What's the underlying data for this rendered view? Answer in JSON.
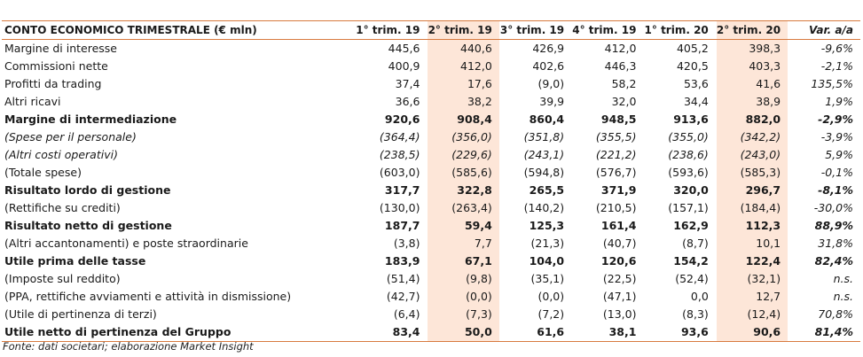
{
  "table": {
    "headers": [
      "CONTO ECONOMICO TRIMESTRALE (€ mln)",
      "1° trim. 19",
      "2° trim. 19",
      "3° trim. 19",
      "4° trim. 19",
      "1° trim. 20",
      "2° trim. 20",
      "Var. a/a"
    ],
    "shaded_columns": [
      2,
      6
    ],
    "rows": [
      {
        "label": "Margine di interesse",
        "style": "normal",
        "values": [
          "445,6",
          "440,6",
          "426,9",
          "412,0",
          "405,2",
          "398,3",
          "-9,6%"
        ]
      },
      {
        "label": "Commissioni nette",
        "style": "normal",
        "values": [
          "400,9",
          "412,0",
          "402,6",
          "446,3",
          "420,5",
          "403,3",
          "-2,1%"
        ]
      },
      {
        "label": "Profitti da trading",
        "style": "normal",
        "values": [
          "37,4",
          "17,6",
          "(9,0)",
          "58,2",
          "53,6",
          "41,6",
          "135,5%"
        ]
      },
      {
        "label": "Altri ricavi",
        "style": "normal",
        "values": [
          "36,6",
          "38,2",
          "39,9",
          "32,0",
          "34,4",
          "38,9",
          "1,9%"
        ]
      },
      {
        "label": "Margine di intermediazione",
        "style": "bold",
        "values": [
          "920,6",
          "908,4",
          "860,4",
          "948,5",
          "913,6",
          "882,0",
          "-2,9%"
        ]
      },
      {
        "label": "(Spese per il personale)",
        "style": "italic",
        "values": [
          "(364,4)",
          "(356,0)",
          "(351,8)",
          "(355,5)",
          "(355,0)",
          "(342,2)",
          "-3,9%"
        ]
      },
      {
        "label": "(Altri costi operativi)",
        "style": "italic",
        "values": [
          "(238,5)",
          "(229,6)",
          "(243,1)",
          "(221,2)",
          "(238,6)",
          "(243,0)",
          "5,9%"
        ]
      },
      {
        "label": "(Totale spese)",
        "style": "normal",
        "values": [
          "(603,0)",
          "(585,6)",
          "(594,8)",
          "(576,7)",
          "(593,6)",
          "(585,3)",
          "-0,1%"
        ]
      },
      {
        "label": "Risultato lordo di gestione",
        "style": "bold",
        "values": [
          "317,7",
          "322,8",
          "265,5",
          "371,9",
          "320,0",
          "296,7",
          "-8,1%"
        ]
      },
      {
        "label": "(Rettifiche su crediti)",
        "style": "normal",
        "values": [
          "(130,0)",
          "(263,4)",
          "(140,2)",
          "(210,5)",
          "(157,1)",
          "(184,4)",
          "-30,0%"
        ]
      },
      {
        "label": "Risultato netto di gestione",
        "style": "bold",
        "values": [
          "187,7",
          "59,4",
          "125,3",
          "161,4",
          "162,9",
          "112,3",
          "88,9%"
        ]
      },
      {
        "label": "(Altri accantonamenti) e poste straordinarie",
        "style": "normal",
        "values": [
          "(3,8)",
          "7,7",
          "(21,3)",
          "(40,7)",
          "(8,7)",
          "10,1",
          "31,8%"
        ]
      },
      {
        "label": "Utile prima delle tasse",
        "style": "bold",
        "values": [
          "183,9",
          "67,1",
          "104,0",
          "120,6",
          "154,2",
          "122,4",
          "82,4%"
        ]
      },
      {
        "label": "(Imposte sul reddito)",
        "style": "normal",
        "values": [
          "(51,4)",
          "(9,8)",
          "(35,1)",
          "(22,5)",
          "(52,4)",
          "(32,1)",
          "n.s."
        ]
      },
      {
        "label": "(PPA, rettifiche avviamenti e attività in dismissione)",
        "style": "normal",
        "values": [
          "(42,7)",
          "(0,0)",
          "(0,0)",
          "(47,1)",
          "0,0",
          "12,7",
          "n.s."
        ]
      },
      {
        "label": "(Utile di pertinenza di terzi)",
        "style": "normal",
        "values": [
          "(6,4)",
          "(7,3)",
          "(7,2)",
          "(13,0)",
          "(8,3)",
          "(12,4)",
          "70,8%"
        ]
      },
      {
        "label": "Utile netto di pertinenza del Gruppo",
        "style": "bold",
        "values": [
          "83,4",
          "50,0",
          "61,6",
          "38,1",
          "93,6",
          "90,6",
          "81,4%"
        ]
      }
    ]
  },
  "footnote": "Fonte: dati societari; elaborazione Market Insight",
  "colors": {
    "accent": "#d87a3f",
    "shade": "#fde6d8"
  }
}
